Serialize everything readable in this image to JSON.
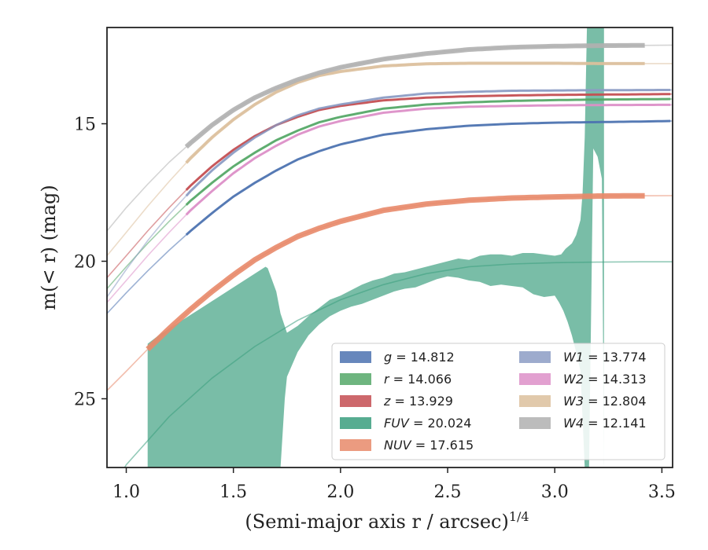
{
  "chart_data": {
    "type": "line",
    "xlabel": "(Semi-major axis r / arcsec)",
    "xlabel_sup": "1/4",
    "ylabel": "m(< r) (mag)",
    "xlim": [
      0.91,
      3.55
    ],
    "ylim": [
      27.5,
      11.5
    ],
    "y_inverted": true,
    "grid": false,
    "legend_position": "lower-right",
    "x_ticks": [
      1.0,
      1.5,
      2.0,
      2.5,
      3.0,
      3.5
    ],
    "x_tick_labels": [
      "1.0",
      "1.5",
      "2.0",
      "2.5",
      "3.0",
      "3.5"
    ],
    "y_ticks": [
      15,
      20,
      25
    ],
    "y_tick_labels": [
      "15",
      "20",
      "25"
    ],
    "series": [
      {
        "id": "g",
        "legend_var": "g",
        "legend_val": "14.812",
        "color": "#4c72b0",
        "x": [
          0.91,
          1.0,
          1.1,
          1.2,
          1.3,
          1.4,
          1.5,
          1.6,
          1.7,
          1.8,
          1.9,
          2.0,
          2.2,
          2.4,
          2.6,
          2.8,
          3.0,
          3.2,
          3.4,
          3.55
        ],
        "y": [
          21.9,
          21.15,
          20.35,
          19.6,
          18.9,
          18.25,
          17.65,
          17.15,
          16.7,
          16.3,
          16.0,
          15.75,
          15.4,
          15.2,
          15.07,
          15.0,
          14.96,
          14.94,
          14.92,
          14.9
        ],
        "band_x": [
          1.28,
          3.55
        ],
        "band_width": 3
      },
      {
        "id": "r",
        "legend_var": "r",
        "legend_val": "14.066",
        "color": "#55a868",
        "x": [
          0.91,
          1.0,
          1.1,
          1.2,
          1.3,
          1.4,
          1.5,
          1.6,
          1.7,
          1.8,
          1.9,
          2.0,
          2.2,
          2.4,
          2.6,
          2.8,
          3.0,
          3.2,
          3.4,
          3.55
        ],
        "y": [
          21.0,
          20.2,
          19.35,
          18.55,
          17.8,
          17.15,
          16.55,
          16.05,
          15.6,
          15.25,
          14.95,
          14.75,
          14.45,
          14.3,
          14.22,
          14.17,
          14.14,
          14.12,
          14.11,
          14.1
        ],
        "band_x": [
          1.28,
          3.55
        ],
        "band_width": 3
      },
      {
        "id": "z",
        "legend_var": "z",
        "legend_val": "13.929",
        "color": "#c44e52",
        "x": [
          0.91,
          1.0,
          1.1,
          1.2,
          1.3,
          1.4,
          1.5,
          1.6,
          1.7,
          1.8,
          1.9,
          2.0,
          2.2,
          2.4,
          2.6,
          2.8,
          3.0,
          3.2,
          3.4,
          3.55
        ],
        "y": [
          20.6,
          19.8,
          18.9,
          18.05,
          17.25,
          16.55,
          15.95,
          15.45,
          15.05,
          14.75,
          14.5,
          14.35,
          14.15,
          14.05,
          14.0,
          13.97,
          13.95,
          13.94,
          13.93,
          13.92
        ],
        "band_x": [
          1.28,
          3.55
        ],
        "band_width": 3
      },
      {
        "id": "FUV",
        "legend_var": "FUV",
        "legend_val": "20.024",
        "color": "#3a9e7e",
        "x": [
          0.91,
          1.0,
          1.2,
          1.4,
          1.6,
          1.8,
          2.0,
          2.2,
          2.4,
          2.6,
          2.8,
          3.0,
          3.2,
          3.4,
          3.55
        ],
        "y": [
          28.6,
          27.4,
          25.65,
          24.25,
          23.1,
          22.15,
          21.4,
          20.85,
          20.45,
          20.2,
          20.1,
          20.05,
          20.03,
          20.02,
          20.02
        ],
        "band_upper_x": [
          1.1,
          1.15,
          1.2,
          1.3,
          1.4,
          1.5,
          1.6,
          1.65,
          1.66,
          1.7,
          1.72,
          1.75,
          1.8,
          1.85,
          1.9,
          1.95,
          2.0,
          2.05,
          2.1,
          2.15,
          2.2,
          2.25,
          2.3,
          2.35,
          2.4,
          2.45,
          2.5,
          2.55,
          2.6,
          2.65,
          2.7,
          2.75,
          2.8,
          2.85,
          2.9,
          2.95,
          3.0,
          3.03,
          3.05,
          3.08,
          3.1,
          3.12,
          3.13,
          3.14,
          3.15,
          3.23
        ],
        "band_upper_y": [
          23.0,
          22.7,
          22.45,
          21.95,
          21.45,
          20.95,
          20.45,
          20.2,
          20.25,
          21.1,
          21.9,
          22.6,
          22.35,
          22.0,
          21.7,
          21.4,
          21.25,
          21.05,
          20.85,
          20.7,
          20.6,
          20.45,
          20.4,
          20.3,
          20.2,
          20.1,
          20.0,
          19.9,
          19.95,
          19.8,
          19.75,
          19.75,
          19.8,
          19.7,
          19.7,
          19.75,
          19.8,
          19.75,
          19.55,
          19.35,
          19.05,
          18.5,
          17.5,
          15.5,
          11.5,
          11.5
        ],
        "band_lower_x": [
          3.23,
          3.22,
          3.2,
          3.18,
          3.16,
          3.14,
          3.12,
          3.1,
          3.08,
          3.06,
          3.04,
          3.02,
          3.0,
          2.95,
          2.9,
          2.85,
          2.8,
          2.75,
          2.7,
          2.65,
          2.6,
          2.55,
          2.5,
          2.45,
          2.4,
          2.35,
          2.3,
          2.25,
          2.2,
          2.15,
          2.1,
          2.05,
          2.0,
          1.95,
          1.9,
          1.85,
          1.8,
          1.75,
          1.74,
          1.72,
          1.71,
          1.1
        ],
        "band_lower_y": [
          27.5,
          17.0,
          16.2,
          15.9,
          27.5,
          27.5,
          24.0,
          23.3,
          22.7,
          22.2,
          21.8,
          21.5,
          21.25,
          21.3,
          21.2,
          20.95,
          20.9,
          20.85,
          20.9,
          20.75,
          20.7,
          20.6,
          20.55,
          20.65,
          20.8,
          20.95,
          21.0,
          21.1,
          21.25,
          21.4,
          21.55,
          21.65,
          21.8,
          22.0,
          22.3,
          22.7,
          23.3,
          24.2,
          25.0,
          27.5,
          27.5,
          27.5
        ]
      },
      {
        "id": "NUV",
        "legend_var": "NUV",
        "legend_val": "17.615",
        "color": "#e8896a",
        "x": [
          0.91,
          1.0,
          1.1,
          1.2,
          1.3,
          1.4,
          1.5,
          1.6,
          1.7,
          1.8,
          1.9,
          2.0,
          2.2,
          2.4,
          2.6,
          2.8,
          3.0,
          3.2,
          3.4,
          3.55
        ],
        "y": [
          24.7,
          24.0,
          23.2,
          22.45,
          21.75,
          21.1,
          20.5,
          19.95,
          19.5,
          19.1,
          18.8,
          18.55,
          18.15,
          17.92,
          17.78,
          17.7,
          17.66,
          17.63,
          17.62,
          17.615
        ],
        "band_x": [
          1.1,
          3.43
        ],
        "band_width": 7
      },
      {
        "id": "W1",
        "legend_var": "W1",
        "legend_val": "13.774",
        "color": "#8c9cc4",
        "x": [
          0.91,
          1.0,
          1.1,
          1.2,
          1.3,
          1.4,
          1.5,
          1.6,
          1.7,
          1.8,
          1.9,
          2.0,
          2.2,
          2.4,
          2.6,
          2.8,
          3.0,
          3.2,
          3.4,
          3.55
        ],
        "y": [
          21.3,
          20.3,
          19.25,
          18.3,
          17.45,
          16.7,
          16.05,
          15.5,
          15.05,
          14.7,
          14.45,
          14.3,
          14.05,
          13.9,
          13.84,
          13.8,
          13.79,
          13.78,
          13.775,
          13.77
        ],
        "band_x": [
          1.28,
          3.55
        ],
        "band_width": 3
      },
      {
        "id": "W2",
        "legend_var": "W2",
        "legend_val": "14.313",
        "color": "#dd8fc8",
        "x": [
          0.91,
          1.0,
          1.1,
          1.2,
          1.3,
          1.4,
          1.5,
          1.6,
          1.7,
          1.8,
          1.9,
          2.0,
          2.2,
          2.4,
          2.6,
          2.8,
          3.0,
          3.2,
          3.4,
          3.55
        ],
        "y": [
          21.5,
          20.7,
          19.8,
          18.95,
          18.15,
          17.45,
          16.8,
          16.25,
          15.8,
          15.4,
          15.1,
          14.9,
          14.6,
          14.45,
          14.38,
          14.35,
          14.33,
          14.32,
          14.315,
          14.31
        ],
        "band_x": [
          1.28,
          3.55
        ],
        "band_width": 3
      },
      {
        "id": "W3",
        "legend_var": "W3",
        "legend_val": "12.804",
        "color": "#dcc09c",
        "x": [
          0.91,
          1.0,
          1.1,
          1.2,
          1.3,
          1.4,
          1.5,
          1.6,
          1.7,
          1.8,
          1.9,
          2.0,
          2.2,
          2.4,
          2.6,
          2.8,
          3.0,
          3.2,
          3.4,
          3.55
        ],
        "y": [
          19.8,
          18.95,
          18.0,
          17.1,
          16.25,
          15.5,
          14.85,
          14.3,
          13.85,
          13.5,
          13.25,
          13.1,
          12.9,
          12.82,
          12.8,
          12.8,
          12.8,
          12.81,
          12.81,
          12.81
        ],
        "band_x": [
          1.28,
          3.43
        ],
        "band_width": 4
      },
      {
        "id": "W4",
        "legend_var": "W4",
        "legend_val": "12.141",
        "color": "#b0b0b0",
        "x": [
          0.91,
          1.0,
          1.1,
          1.2,
          1.3,
          1.4,
          1.5,
          1.6,
          1.7,
          1.8,
          1.9,
          2.0,
          2.2,
          2.4,
          2.6,
          2.8,
          3.0,
          3.2,
          3.4,
          3.55
        ],
        "y": [
          18.9,
          18.05,
          17.2,
          16.4,
          15.7,
          15.05,
          14.5,
          14.05,
          13.7,
          13.4,
          13.15,
          12.95,
          12.65,
          12.45,
          12.3,
          12.22,
          12.18,
          12.16,
          12.15,
          12.14
        ],
        "band_x": [
          1.28,
          3.43
        ],
        "band_width": 6
      }
    ]
  }
}
